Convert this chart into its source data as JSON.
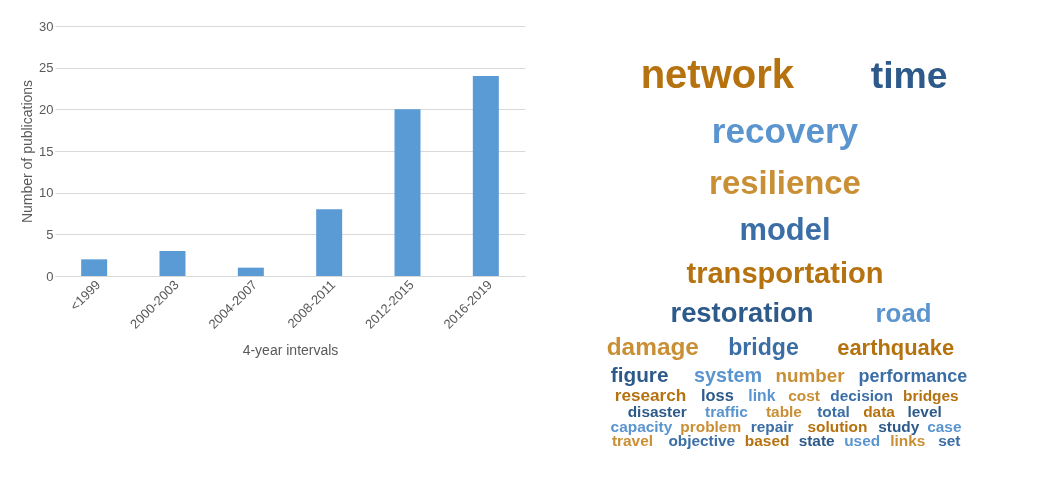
{
  "chart_data": [
    {
      "type": "bar",
      "xlabel": "4-year intervals",
      "ylabel": "Number of publications",
      "categories": [
        "<1999",
        "2000-2003",
        "2004-2007",
        "2008-2011",
        "2012-2015",
        "2016-2019"
      ],
      "values": [
        2,
        3,
        1,
        8,
        20,
        24
      ],
      "color": "#5b9bd5",
      "ylim": [
        0,
        30
      ],
      "yticks": [
        0,
        5,
        10,
        15,
        20,
        25,
        30
      ],
      "grid": "y"
    },
    {
      "type": "other",
      "annotations": [
        "network",
        "time",
        "recovery",
        "resilience",
        "model",
        "transportation",
        "restoration",
        "road",
        "damage",
        "bridge",
        "earthquake",
        "figure",
        "system",
        "number",
        "performance",
        "research",
        "loss",
        "link",
        "cost",
        "decision",
        "bridges",
        "disaster",
        "traffic",
        "table",
        "total",
        "data",
        "level",
        "capacity",
        "problem",
        "repair",
        "solution",
        "study",
        "case",
        "travel",
        "objective",
        "based",
        "state",
        "used",
        "links",
        "set"
      ]
    }
  ]
}
